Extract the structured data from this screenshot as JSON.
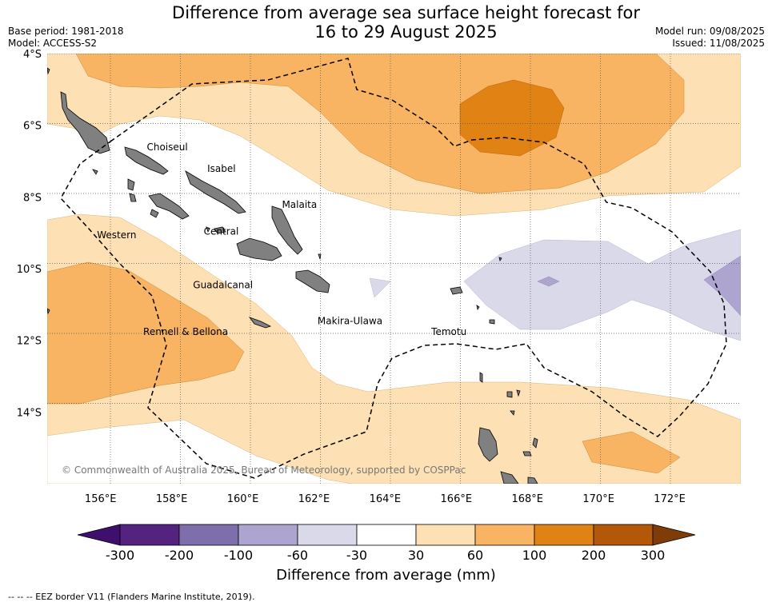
{
  "title": {
    "line1": "Difference from average sea surface height forecast for",
    "line2": "16 to 29 August 2025"
  },
  "meta_left": {
    "base_period": "Base period: 1981-2018",
    "model": "Model: ACCESS-S2"
  },
  "meta_right": {
    "model_run": "Model run: 09/08/2025",
    "issued": "Issued: 11/08/2025"
  },
  "map": {
    "lon_range": [
      154.5,
      174.0
    ],
    "lat_range": [
      -16.0,
      -4.0
    ],
    "lat_ticks": [
      {
        "v": -4,
        "label": "4°S"
      },
      {
        "v": -6,
        "label": "6°S"
      },
      {
        "v": -8,
        "label": "8°S"
      },
      {
        "v": -10,
        "label": "10°S"
      },
      {
        "v": -12,
        "label": "12°S"
      },
      {
        "v": -14,
        "label": "14°S"
      }
    ],
    "lon_ticks": [
      {
        "v": 156,
        "label": "156°E"
      },
      {
        "v": 158,
        "label": "158°E"
      },
      {
        "v": 160,
        "label": "160°E"
      },
      {
        "v": 162,
        "label": "162°E"
      },
      {
        "v": 164,
        "label": "164°E"
      },
      {
        "v": 166,
        "label": "166°E"
      },
      {
        "v": 168,
        "label": "168°E"
      },
      {
        "v": 170,
        "label": "170°E"
      },
      {
        "v": 172,
        "label": "172°E"
      }
    ],
    "province_labels": [
      {
        "name": "Choiseul",
        "lon": 157.3,
        "lat": -6.7
      },
      {
        "name": "Isabel",
        "lon": 159.0,
        "lat": -7.3
      },
      {
        "name": "Malaita",
        "lon": 161.1,
        "lat": -8.3
      },
      {
        "name": "Western",
        "lon": 155.9,
        "lat": -9.15
      },
      {
        "name": "Central",
        "lon": 158.9,
        "lat": -9.05
      },
      {
        "name": "Guadalcanal",
        "lon": 158.6,
        "lat": -10.55
      },
      {
        "name": "Makira-Ulawa",
        "lon": 162.1,
        "lat": -11.55
      },
      {
        "name": "Temotu",
        "lon": 165.3,
        "lat": -11.85
      },
      {
        "name": "Rennell & Bellona",
        "lon": 157.2,
        "lat": -11.85
      }
    ],
    "copyright": "© Commonwealth of Australia 2025, Bureau of Meteorology, supported by COSPPac"
  },
  "colorbar": {
    "title": "Difference from average (mm)",
    "boundaries": [
      "-300",
      "-200",
      "-100",
      "-60",
      "-30",
      "30",
      "60",
      "100",
      "200",
      "300"
    ],
    "colors": [
      "#3f0f6e",
      "#54227f",
      "#7e6fac",
      "#ada5cf",
      "#d9d9ea",
      "#ffffff",
      "#fde0b3",
      "#f8b462",
      "#e08214",
      "#b35808",
      "#7f3b08"
    ]
  },
  "legend_note": "--  --  -- EEZ border V11 (Flanders Marine Institute, 2019)."
}
